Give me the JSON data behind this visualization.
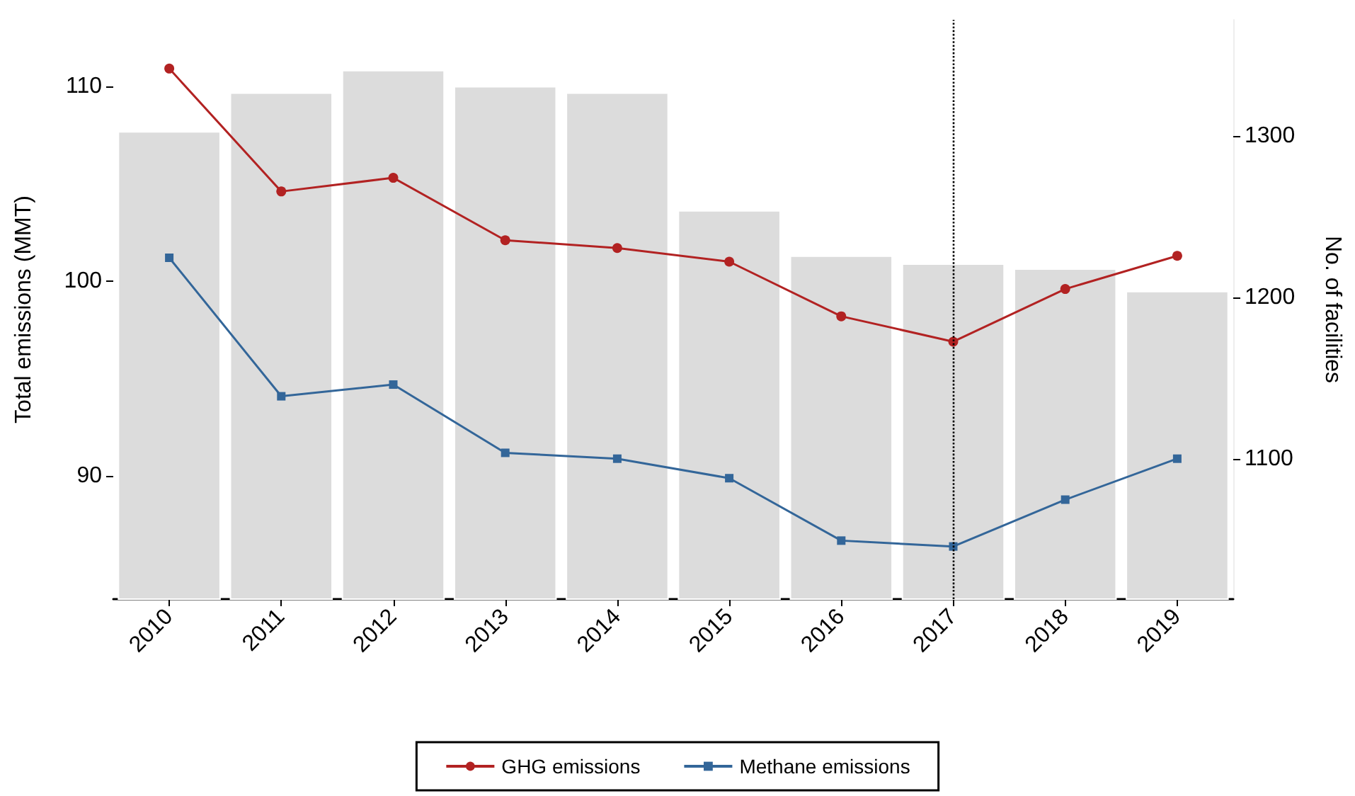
{
  "chart_data": {
    "type": "line",
    "ylabel": "Total emissions (MMT)",
    "y2label": "No. of facilities",
    "categories": [
      "2010",
      "2011",
      "2012",
      "2013",
      "2014",
      "2015",
      "2016",
      "2017",
      "2018",
      "2019"
    ],
    "series": [
      {
        "type": "bar",
        "axis": "y2",
        "color": "#dcdcdc",
        "values": [
          1303,
          1327,
          1341,
          1331,
          1327,
          1254,
          1226,
          1221,
          1218,
          1204
        ]
      },
      {
        "name": "GHG emissions",
        "color": "#b22222",
        "marker": "circle",
        "values": [
          110.9,
          104.6,
          105.3,
          102.1,
          101.7,
          101.0,
          98.2,
          96.9,
          99.6,
          101.3
        ]
      },
      {
        "name": "Methane emissions",
        "color": "#336699",
        "marker": "square",
        "values": [
          101.2,
          94.1,
          94.7,
          91.2,
          90.9,
          89.9,
          86.7,
          86.4,
          88.8,
          90.9
        ]
      }
    ],
    "ylim": [
      83.7,
      113.4
    ],
    "yticks": [
      90,
      100,
      110
    ],
    "y2lim": [
      1013,
      1372
    ],
    "y2ticks": [
      1100,
      1200,
      1300
    ],
    "ref_lines": [
      {
        "axis": "x",
        "value": "2017",
        "line_style": "dotted",
        "color": "#000000"
      }
    ],
    "grid": false,
    "legend": "bottom",
    "line_style": "solid"
  }
}
